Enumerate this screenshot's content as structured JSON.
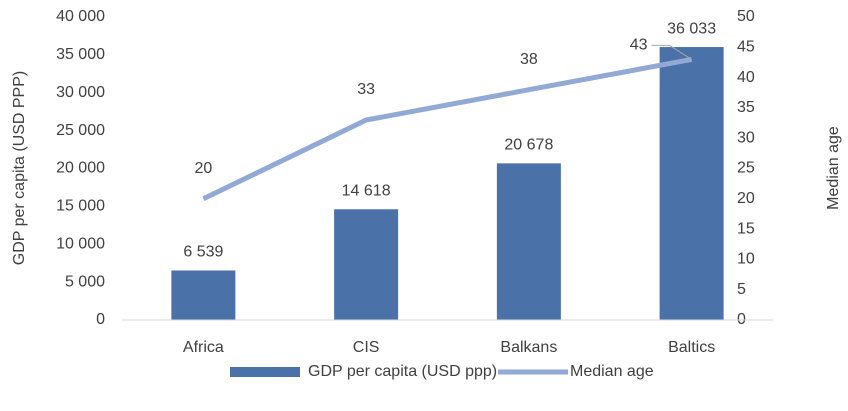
{
  "chart_data": {
    "type": "bar_line",
    "categories": [
      "Africa",
      "CIS",
      "Balkans",
      "Baltics"
    ],
    "series": [
      {
        "name": "GDP per capita (USD ppp)",
        "type": "bar",
        "color": "#4a72a8",
        "values": [
          6539,
          14618,
          20678,
          36033
        ],
        "value_labels": [
          "6 539",
          "14 618",
          "20 678",
          "36 033"
        ]
      },
      {
        "name": "Median age",
        "type": "line",
        "axis": "y2",
        "color": "#91a9d4",
        "values": [
          20,
          33,
          38,
          43
        ]
      }
    ],
    "ylabel": "GDP per capita (USD PPP)",
    "y2label": "Median age",
    "ylim": [
      0,
      40000
    ],
    "yticks": [
      0,
      {
        "value": 5000,
        "label": "5 000"
      },
      {
        "value": 10000,
        "label": "10 000"
      },
      {
        "value": 15000,
        "label": "15 000"
      },
      {
        "value": 20000,
        "label": "20 000"
      },
      {
        "value": 25000,
        "label": "25 000"
      },
      {
        "value": 30000,
        "label": "30 000"
      },
      {
        "value": 35000,
        "label": "35 000"
      },
      {
        "value": 40000,
        "label": "40 000"
      }
    ],
    "y2lim": [
      0,
      50
    ],
    "y2ticks": [
      0,
      5,
      10,
      15,
      20,
      25,
      30,
      35,
      40,
      45,
      50
    ],
    "legend": "bottom"
  }
}
